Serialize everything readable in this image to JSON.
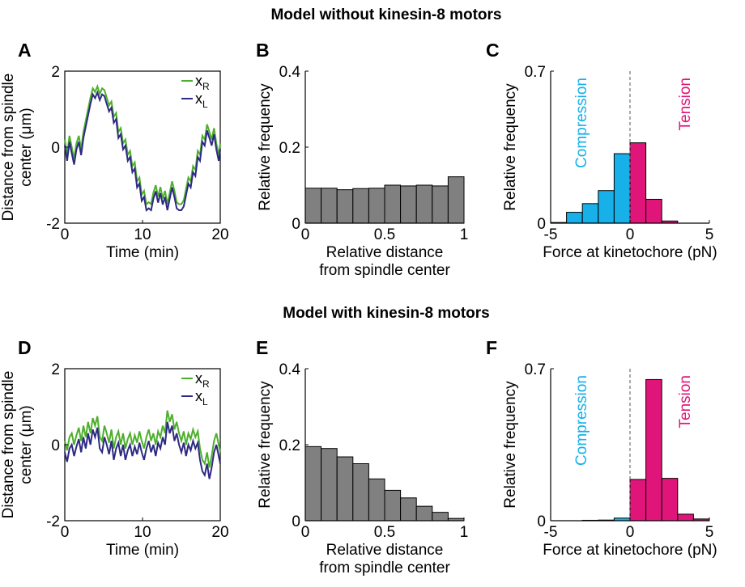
{
  "headers": {
    "top": "Model without kinesin-8 motors",
    "bottom": "Model with kinesin-8 motors"
  },
  "colors": {
    "xR": "#4daf2c",
    "xL": "#2e2a84",
    "hist_gray": "#808080",
    "compression": "#17b0e8",
    "tension": "#e0157a"
  },
  "chart_data": [
    {
      "panel": "A",
      "type": "line",
      "xlabel": "Time (min)",
      "ylabel": "Distance from spindle center (μm)",
      "xlim": [
        0,
        20
      ],
      "ylim": [
        -2,
        2
      ],
      "xticks": [
        "0",
        "10",
        "20"
      ],
      "yticks": [
        "-2",
        "0",
        "2"
      ],
      "legend": "top-right",
      "series": [
        {
          "name": "xR",
          "sub": "R",
          "color": "#4daf2c",
          "offset": 0.08,
          "x": [
            0,
            0.3,
            0.6,
            0.9,
            1.2,
            1.5,
            1.8,
            2.1,
            2.4,
            2.7,
            3.0,
            3.3,
            3.6,
            3.9,
            4.2,
            4.5,
            4.8,
            5.1,
            5.4,
            5.7,
            6.0,
            6.3,
            6.6,
            6.9,
            7.2,
            7.5,
            7.8,
            8.1,
            8.4,
            8.7,
            9.0,
            9.3,
            9.6,
            9.9,
            10.2,
            10.5,
            10.8,
            11.1,
            11.4,
            11.7,
            12.0,
            12.3,
            12.6,
            12.9,
            13.2,
            13.5,
            13.8,
            14.1,
            14.4,
            14.7,
            15.0,
            15.3,
            15.6,
            15.9,
            16.2,
            16.5,
            16.8,
            17.1,
            17.4,
            17.7,
            18.0,
            18.3,
            18.6,
            18.9,
            19.2,
            19.5,
            19.8,
            20
          ],
          "y": [
            0.2,
            -0.2,
            0.3,
            0.0,
            -0.3,
            0.1,
            0.3,
            -0.05,
            0.4,
            0.7,
            1.0,
            1.3,
            1.55,
            1.45,
            1.6,
            1.4,
            1.55,
            1.5,
            1.3,
            1.1,
            1.2,
            0.8,
            0.9,
            0.4,
            0.5,
            0.1,
            0.2,
            -0.2,
            -0.1,
            -0.5,
            -0.4,
            -0.9,
            -0.8,
            -1.25,
            -1.15,
            -1.5,
            -1.45,
            -1.5,
            -1.2,
            -1.0,
            -1.3,
            -1.05,
            -1.35,
            -1.15,
            -1.5,
            -1.2,
            -0.9,
            -1.15,
            -1.45,
            -1.5,
            -1.5,
            -1.4,
            -1.1,
            -0.8,
            -0.9,
            -0.5,
            -0.6,
            -0.1,
            -0.2,
            0.3,
            0.2,
            0.6,
            0.4,
            0.2,
            0.5,
            0.1,
            -0.2,
            0.1
          ]
        },
        {
          "name": "xL",
          "sub": "L",
          "color": "#2e2a84",
          "offset": -0.08,
          "x": [],
          "y": []
        }
      ]
    },
    {
      "panel": "B",
      "type": "bar",
      "xlabel": "Relative distance",
      "xlabel2": "from spindle center",
      "ylabel": "Relative frequency",
      "xlim": [
        0,
        1
      ],
      "ylim": [
        0,
        0.4
      ],
      "xticks": [
        "0",
        "0.5",
        "1"
      ],
      "yticks": [
        "0",
        "0.2",
        "0.4"
      ],
      "bin_edges": [
        0,
        0.1,
        0.2,
        0.3,
        0.4,
        0.5,
        0.6,
        0.7,
        0.8,
        0.9,
        1.0
      ],
      "values": [
        0.092,
        0.092,
        0.088,
        0.091,
        0.092,
        0.1,
        0.098,
        0.1,
        0.098,
        0.122
      ]
    },
    {
      "panel": "C",
      "type": "bar",
      "xlabel": "Force at kinetochore (pN)",
      "ylabel": "Relative frequency",
      "xlim": [
        -5,
        5
      ],
      "ylim": [
        0,
        0.7
      ],
      "xticks": [
        "-5",
        "0",
        "5"
      ],
      "yticks": [
        "0",
        "0.7"
      ],
      "annotations": [
        "Compression",
        "Tension"
      ],
      "bin_edges": [
        -5,
        -4,
        -3,
        -2,
        -1,
        0,
        1,
        2,
        3,
        4,
        5
      ],
      "values": [
        0.003,
        0.05,
        0.09,
        0.15,
        0.32,
        0.37,
        0.11,
        0.01,
        0.0,
        0.0
      ]
    },
    {
      "panel": "D",
      "type": "line",
      "xlabel": "Time (min)",
      "ylabel": "Distance from spindle center (μm)",
      "xlim": [
        0,
        20
      ],
      "ylim": [
        -2,
        2
      ],
      "xticks": [
        "0",
        "10",
        "20"
      ],
      "yticks": [
        "-2",
        "0",
        "2"
      ],
      "legend": "top-right",
      "series": [
        {
          "name": "xR",
          "sub": "R",
          "color": "#4daf2c",
          "offset": 0.12,
          "x": [
            0,
            0.3,
            0.6,
            0.9,
            1.2,
            1.5,
            1.8,
            2.1,
            2.4,
            2.7,
            3.0,
            3.3,
            3.6,
            3.9,
            4.2,
            4.5,
            4.8,
            5.1,
            5.4,
            5.7,
            6.0,
            6.3,
            6.6,
            6.9,
            7.2,
            7.5,
            7.8,
            8.1,
            8.4,
            8.7,
            9.0,
            9.3,
            9.6,
            9.9,
            10.2,
            10.5,
            10.8,
            11.1,
            11.4,
            11.7,
            12.0,
            12.3,
            12.6,
            12.9,
            13.2,
            13.5,
            13.8,
            14.1,
            14.4,
            14.7,
            15.0,
            15.3,
            15.6,
            15.9,
            16.2,
            16.5,
            16.8,
            17.1,
            17.4,
            17.7,
            18.0,
            18.3,
            18.6,
            18.9,
            19.2,
            19.5,
            19.8,
            20
          ],
          "y": [
            0.1,
            -0.15,
            0.2,
            0.3,
            0.0,
            0.25,
            0.45,
            0.1,
            0.5,
            0.2,
            0.6,
            0.3,
            0.7,
            0.5,
            0.75,
            0.2,
            0.1,
            0.5,
            0.3,
            0.05,
            0.4,
            -0.1,
            0.2,
            0.35,
            0.0,
            0.3,
            -0.1,
            0.15,
            0.3,
            0.0,
            0.25,
            0.05,
            0.35,
            0.1,
            -0.1,
            0.2,
            0.4,
            0.1,
            0.3,
            0.0,
            0.35,
            0.2,
            0.5,
            0.3,
            0.9,
            0.6,
            0.8,
            0.4,
            0.6,
            0.3,
            0.1,
            0.35,
            0.0,
            0.3,
            0.15,
            0.4,
            0.2,
            0.35,
            -0.1,
            -0.4,
            -0.5,
            -0.2,
            -0.6,
            -0.3,
            0.1,
            0.3,
            0.0,
            -0.2
          ]
        },
        {
          "name": "xL",
          "sub": "L",
          "color": "#2e2a84",
          "offset": -0.18,
          "x": [],
          "y": []
        }
      ]
    },
    {
      "panel": "E",
      "type": "bar",
      "xlabel": "Relative distance",
      "xlabel2": "from spindle center",
      "ylabel": "Relative frequency",
      "xlim": [
        0,
        1
      ],
      "ylim": [
        0,
        0.4
      ],
      "xticks": [
        "0",
        "0.5",
        "1"
      ],
      "yticks": [
        "0",
        "0.2",
        "0.4"
      ],
      "bin_edges": [
        0,
        0.1,
        0.2,
        0.3,
        0.4,
        0.5,
        0.6,
        0.7,
        0.8,
        0.9,
        1.0
      ],
      "values": [
        0.195,
        0.19,
        0.168,
        0.15,
        0.11,
        0.08,
        0.06,
        0.038,
        0.022,
        0.006
      ]
    },
    {
      "panel": "F",
      "type": "bar",
      "xlabel": "Force at kinetochore (pN)",
      "ylabel": "Relative frequency",
      "xlim": [
        -5,
        5
      ],
      "ylim": [
        0,
        0.7
      ],
      "xticks": [
        "-5",
        "0",
        "5"
      ],
      "yticks": [
        "0",
        "0.7"
      ],
      "annotations": [
        "Compression",
        "Tension"
      ],
      "bin_edges": [
        -5,
        -4,
        -3,
        -2,
        -1,
        0,
        1,
        2,
        3,
        4,
        5
      ],
      "values": [
        0.0,
        0.0,
        0.002,
        0.003,
        0.012,
        0.19,
        0.65,
        0.195,
        0.03,
        0.008
      ]
    }
  ]
}
